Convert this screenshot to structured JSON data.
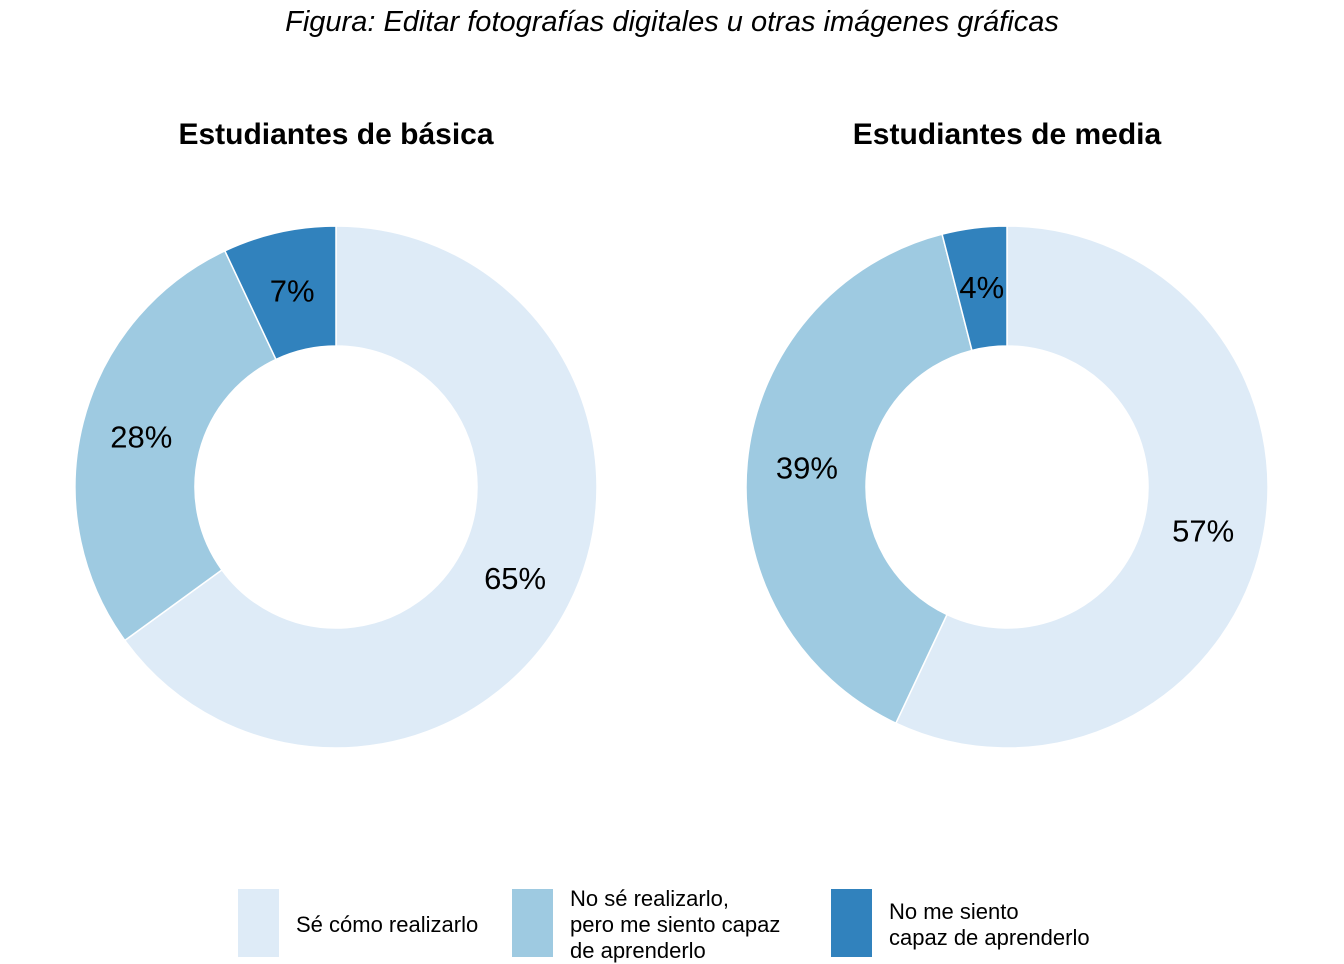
{
  "figure_title": "Figura: Editar fotografías digitales u otras imágenes gráficas",
  "legend": [
    {
      "label": "Sé cómo realizarlo",
      "color": "#DEEBF7"
    },
    {
      "label": "No sé realizarlo,\npero me siento capaz\nde aprenderlo",
      "color": "#9ECAE1"
    },
    {
      "label": "No me siento\ncapaz de aprenderlo",
      "color": "#3182BD"
    }
  ],
  "chart_data": [
    {
      "type": "pie",
      "subtype": "donut",
      "title": "Estudiantes de básica",
      "categories": [
        "Sé cómo realizarlo",
        "No sé realizarlo, pero me siento capaz de aprenderlo",
        "No me siento capaz de aprenderlo"
      ],
      "values": [
        65,
        28,
        7
      ],
      "labels": [
        "65%",
        "28%",
        "7%"
      ],
      "colors": [
        "#DEEBF7",
        "#9ECAE1",
        "#3182BD"
      ]
    },
    {
      "type": "pie",
      "subtype": "donut",
      "title": "Estudiantes de media",
      "categories": [
        "Sé cómo realizarlo",
        "No sé realizarlo, pero me siento capaz de aprenderlo",
        "No me siento capaz de aprenderlo"
      ],
      "values": [
        57,
        39,
        4
      ],
      "labels": [
        "57%",
        "39%",
        "4%"
      ],
      "colors": [
        "#DEEBF7",
        "#9ECAE1",
        "#3182BD"
      ]
    }
  ]
}
